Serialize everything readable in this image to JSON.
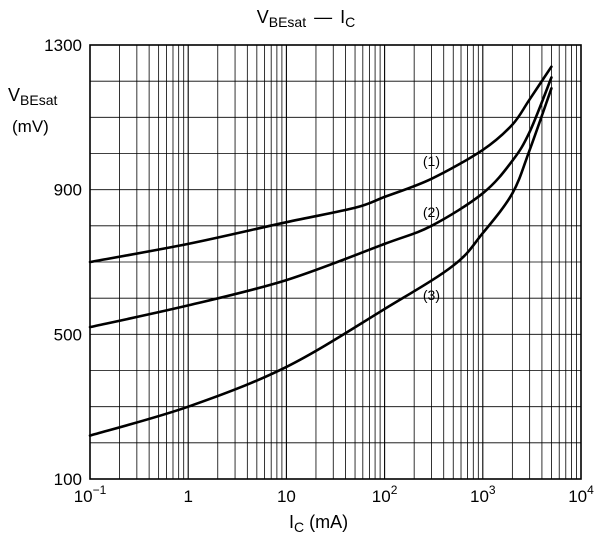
{
  "chart_data": {
    "type": "line",
    "title": {
      "main": "V",
      "sub": "BEsat",
      "dash": "—",
      "main2": "I",
      "sub2": "C"
    },
    "ylabel": {
      "main": "V",
      "sub": "BEsat",
      "unit": "(mV)"
    },
    "xlabel": {
      "main": "I",
      "sub": "C",
      "unit": "(mA)"
    },
    "x_scale": "log",
    "xlim": [
      0.1,
      10000
    ],
    "ylim": [
      100,
      1300
    ],
    "y_ticks": [
      {
        "value": 100,
        "label": "100"
      },
      {
        "value": 500,
        "label": "500"
      },
      {
        "value": 900,
        "label": "900"
      },
      {
        "value": 1300,
        "label": "1300"
      }
    ],
    "x_ticks": [
      {
        "value": 0.1,
        "base": "10",
        "exp": "−1"
      },
      {
        "value": 1,
        "base": "1",
        "exp": ""
      },
      {
        "value": 10,
        "base": "10",
        "exp": ""
      },
      {
        "value": 100,
        "base": "10",
        "exp": "2"
      },
      {
        "value": 1000,
        "base": "10",
        "exp": "3"
      },
      {
        "value": 10000,
        "base": "10",
        "exp": "4"
      }
    ],
    "y_grid_step": 100,
    "grid": true,
    "series": [
      {
        "name": "(1)",
        "x": [
          0.1,
          1,
          10,
          50,
          100,
          300,
          1000,
          2000,
          3000,
          5000
        ],
        "y": [
          700,
          750,
          810,
          850,
          880,
          930,
          1010,
          1080,
          1150,
          1240
        ]
      },
      {
        "name": "(2)",
        "x": [
          0.1,
          1,
          10,
          100,
          300,
          1000,
          2000,
          3000,
          5000
        ],
        "y": [
          520,
          580,
          650,
          750,
          800,
          890,
          980,
          1060,
          1210
        ]
      },
      {
        "name": "(3)",
        "x": [
          0.1,
          1,
          10,
          100,
          500,
          1000,
          2000,
          3000,
          5000
        ],
        "y": [
          220,
          300,
          410,
          570,
          690,
          780,
          890,
          1010,
          1180
        ]
      }
    ],
    "series_label_positions": [
      {
        "name": "(1)",
        "x": 300,
        "y": 965
      },
      {
        "name": "(2)",
        "x": 300,
        "y": 825
      },
      {
        "name": "(3)",
        "x": 300,
        "y": 595
      }
    ]
  }
}
